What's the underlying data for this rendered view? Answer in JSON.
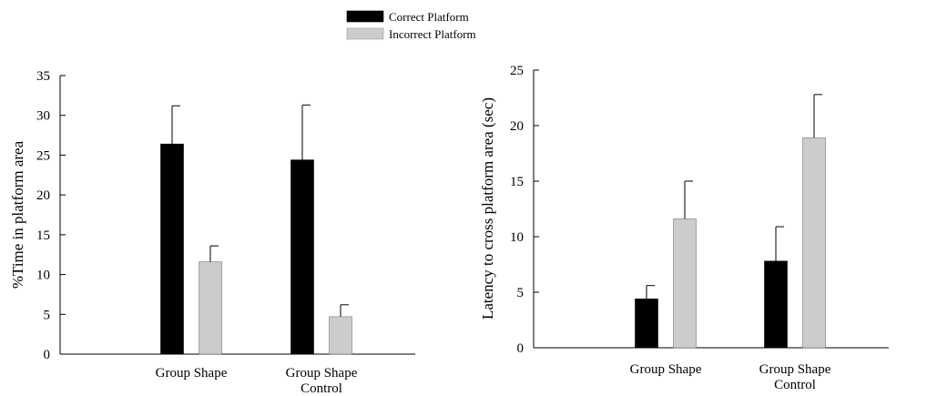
{
  "legend": {
    "items": [
      {
        "label": "Correct Platform",
        "color": "#000000"
      },
      {
        "label": "Incorrect Platform",
        "color": "#cccccc"
      }
    ]
  },
  "chart_data": [
    {
      "type": "bar",
      "categories": [
        [
          "Group Shape"
        ],
        [
          "Group Shape",
          "Control"
        ]
      ],
      "ylabel": "%Time in platform area",
      "xlabel": "",
      "ylim": [
        0,
        35
      ],
      "yticks": [
        0,
        5,
        10,
        15,
        20,
        25,
        30,
        35
      ],
      "series": [
        {
          "name": "Correct Platform",
          "values": [
            26.4,
            24.4
          ],
          "errors": [
            4.8,
            6.9
          ],
          "color": "#000000"
        },
        {
          "name": "Incorrect Platform",
          "values": [
            11.6,
            4.7
          ],
          "errors": [
            2.0,
            1.5
          ],
          "color": "#cccccc"
        }
      ]
    },
    {
      "type": "bar",
      "categories": [
        [
          "Group Shape"
        ],
        [
          "Group Shape",
          "Control"
        ]
      ],
      "ylabel": "Latency to cross  platform area (sec)",
      "xlabel": "",
      "ylim": [
        0,
        25
      ],
      "yticks": [
        0,
        5,
        10,
        15,
        20,
        25
      ],
      "series": [
        {
          "name": "Correct Platform",
          "values": [
            4.4,
            7.8
          ],
          "errors": [
            1.2,
            3.1
          ],
          "color": "#000000"
        },
        {
          "name": "Incorrect Platform",
          "values": [
            11.6,
            18.9
          ],
          "errors": [
            3.4,
            3.9
          ],
          "color": "#cccccc"
        }
      ]
    }
  ]
}
